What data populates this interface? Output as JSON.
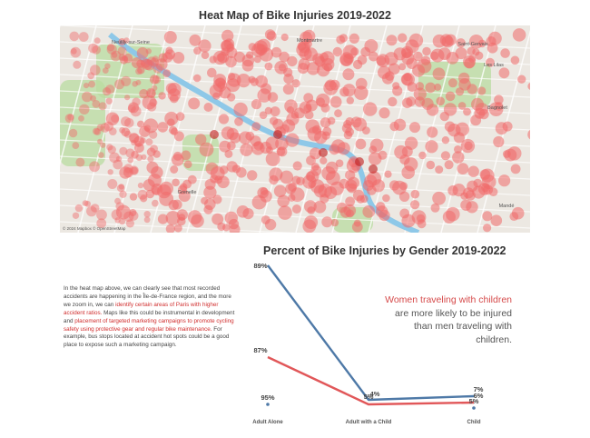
{
  "map": {
    "title": "Heat Map of Bike Injuries 2019-2022",
    "attribution": "© 2024 Mapbox © OpenStreetMap",
    "place_labels": [
      "Neuilly-sur-Seine",
      "Saint-Gervais",
      "Les Lilas",
      "Bagnolet",
      "Montmartre",
      "Grenelle",
      "Mandé"
    ],
    "colors": {
      "heat": "#f06a6a",
      "hot": "#c21b1b",
      "water": "#8ec8e8",
      "park": "#b9dca0",
      "land": "#ece8e2"
    }
  },
  "text": {
    "body_p1": "In the heat map above, we can clearly see that most recorded accidents are happening in the Île-de-France region, and the more we zoom in, we can ",
    "body_red1": "identify certain areas of Paris with higher accident ratios.",
    "body_p2": " Maps like this could be instrumental in development and ",
    "body_red2": "placement of targeted marketing campaigns to promote cycling safety using protective gear and regular bike maintenance.",
    "body_p3": " For example, bus stops located at accident hot spots could be a good place to expose such a marketing campaign.",
    "callout_red": "Women traveling with children",
    "callout_rest": " are more likely to be injured than men traveling with children."
  },
  "chart_data": {
    "type": "line",
    "title": "Percent of Bike Injuries by Gender 2019-2022",
    "categories": [
      "Adult Alone",
      "Adult with a Child",
      "Child"
    ],
    "series": [
      {
        "color": "#4e79a7",
        "values": [
          89,
          5,
          7
        ]
      },
      {
        "color": "#e15759",
        "values": [
          87,
          4,
          6
        ]
      },
      {
        "color": "#4e79a7",
        "values": [
          95,
          4,
          5
        ],
        "marker_only": true
      }
    ],
    "labels": {
      "blue": [
        "89%",
        "5%",
        "7%"
      ],
      "red": [
        "87%",
        "4%",
        "6%"
      ],
      "dots": [
        "95%",
        "",
        "5%"
      ]
    }
  }
}
